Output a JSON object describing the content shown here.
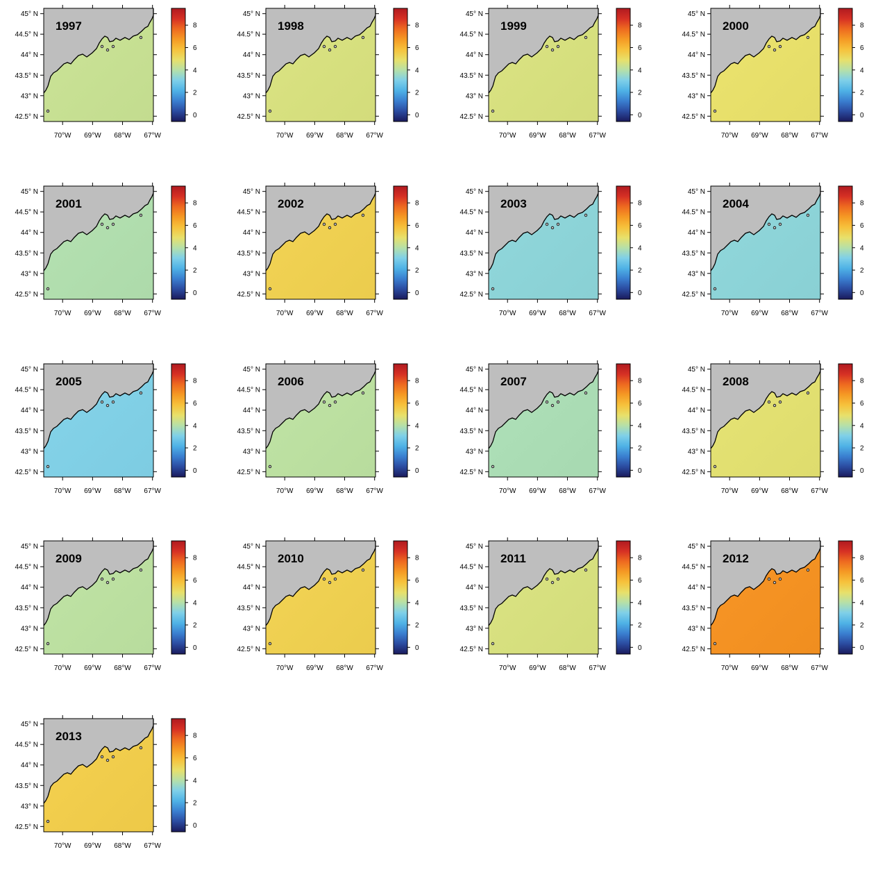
{
  "figure": {
    "lat_ticks": [
      "45° N",
      "44.5° N",
      "44° N",
      "43.5° N",
      "43° N",
      "42.5° N"
    ],
    "lon_ticks": [
      "70°W",
      "69°W",
      "68°W",
      "67°W"
    ],
    "colorbar_ticks": [
      "8",
      "6",
      "4",
      "2",
      "0"
    ],
    "colorbar_range": [
      -0.6,
      9.5
    ],
    "colorbar_colors": [
      "#1a1a5c",
      "#2b4ba0",
      "#3a7fd0",
      "#4fb2e6",
      "#7fd0e8",
      "#b6e0a8",
      "#e8e06a",
      "#f6c23c",
      "#f59a24",
      "#ee6a20",
      "#d63024",
      "#b01a20"
    ],
    "land_color": "#bebebe",
    "coastline_color": "#000000"
  },
  "chart_data": {
    "type": "heatmap",
    "title": "",
    "xlabel": "",
    "ylabel": "",
    "panels": [
      {
        "year": "1997",
        "value": 4.3
      },
      {
        "year": "1998",
        "value": 4.6
      },
      {
        "year": "1999",
        "value": 4.6
      },
      {
        "year": "2000",
        "value": 4.9
      },
      {
        "year": "2001",
        "value": 3.9
      },
      {
        "year": "2002",
        "value": 5.4
      },
      {
        "year": "2003",
        "value": 3.3
      },
      {
        "year": "2004",
        "value": 3.3
      },
      {
        "year": "2005",
        "value": 3.1
      },
      {
        "year": "2006",
        "value": 4.1
      },
      {
        "year": "2007",
        "value": 3.8
      },
      {
        "year": "2008",
        "value": 4.8
      },
      {
        "year": "2009",
        "value": 4.1
      },
      {
        "year": "2010",
        "value": 5.4
      },
      {
        "year": "2011",
        "value": 4.6
      },
      {
        "year": "2012",
        "value": 6.9
      },
      {
        "year": "2013",
        "value": 5.5
      }
    ]
  }
}
